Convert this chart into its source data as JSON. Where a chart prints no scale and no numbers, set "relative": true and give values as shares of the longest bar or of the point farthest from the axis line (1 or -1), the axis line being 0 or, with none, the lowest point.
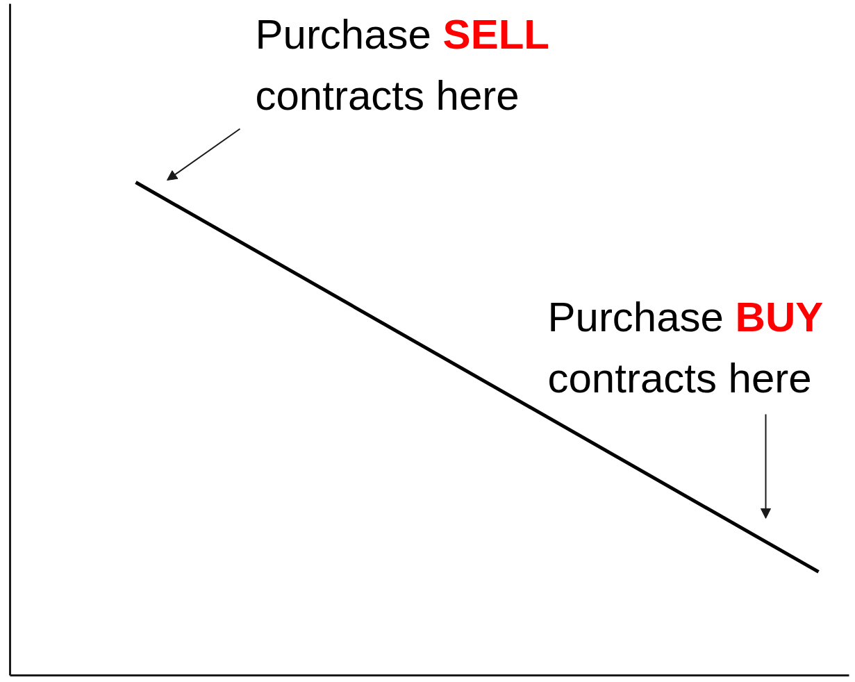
{
  "chart_data": {
    "type": "line",
    "relative": true,
    "categories": [
      null,
      null
    ],
    "series": [
      {
        "color": "#000000",
        "values": [
          1,
          0.21
        ]
      }
    ],
    "annotations": [
      "Purchase SELL contracts here",
      "Purchase BUY contracts here"
    ]
  }
}
